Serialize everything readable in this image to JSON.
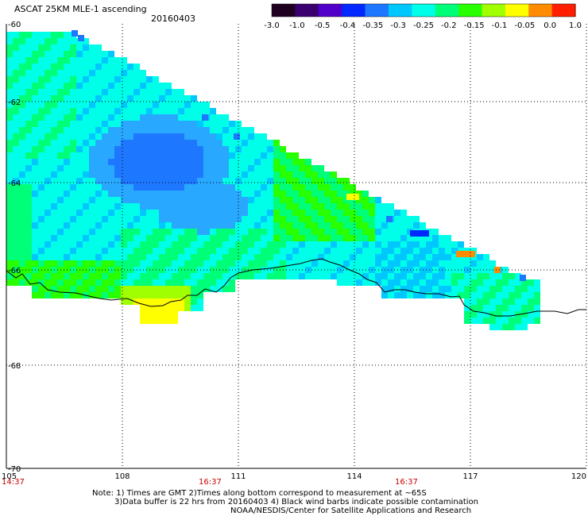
{
  "header": {
    "title": "ASCAT 25KM MLE-1 ascending",
    "date": "20160403"
  },
  "colorbar": {
    "labels": [
      "-3.0",
      "-1.0",
      "-0.5",
      "-0.4",
      "-0.35",
      "-0.3",
      "-0.25",
      "-0.2",
      "-0.15",
      "-0.1",
      "-0.05",
      "0.0",
      "1.0"
    ],
    "colors": [
      "#200020",
      "#3a0070",
      "#5000c8",
      "#0028ff",
      "#1e78ff",
      "#00c8ff",
      "#00ffe8",
      "#00ff78",
      "#28ff00",
      "#a0ff00",
      "#ffff00",
      "#ff8c00",
      "#ff1e00"
    ]
  },
  "map": {
    "lon_ticks": [
      "105",
      "108",
      "111",
      "114",
      "117",
      "120"
    ],
    "lat_ticks": [
      "-60",
      "-62",
      "-64",
      "-66",
      "-68",
      "-70"
    ],
    "time_labels": [
      "14:37",
      "16:37",
      "16:37"
    ],
    "lon_range": [
      105,
      120
    ],
    "lat_range": [
      -60,
      -70
    ],
    "time_label_color": "#cc0000"
  },
  "notes": {
    "line1": "Note: 1) Times are GMT 2)Times along bottom correspond to measurement at ~65S",
    "line2": "3)Data buffer is 22 hrs from 20160403 4) Black wind barbs indicate possible contamination",
    "line3": "NOAA/NESDIS/Center for Satellite Applications and Research"
  }
}
